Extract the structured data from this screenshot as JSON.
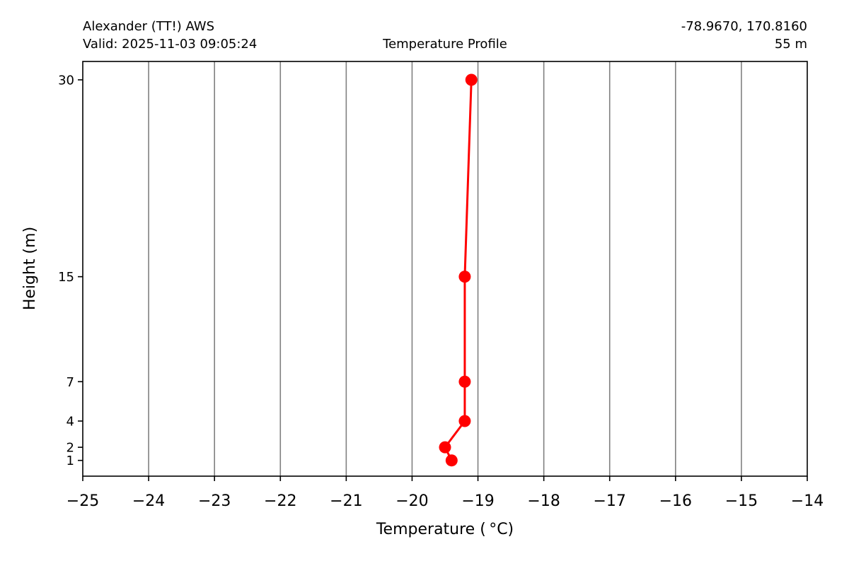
{
  "header": {
    "station": "Alexander (TT!) AWS",
    "valid": "Valid: 2025-11-03 09:05:24",
    "center_title": "Temperature Profile",
    "coords": "-78.9670, 170.8160",
    "elevation": "55 m"
  },
  "chart_data": {
    "type": "line",
    "xlabel": "Temperature ( °C)",
    "ylabel": "Height (m)",
    "xlim": [
      -25,
      -14
    ],
    "ylim": [
      -0.2,
      31.4
    ],
    "x_ticks": [
      -25,
      -24,
      -23,
      -22,
      -21,
      -20,
      -19,
      -18,
      -17,
      -16,
      -15,
      -14
    ],
    "x_tick_labels": [
      "−25",
      "−24",
      "−23",
      "−22",
      "−21",
      "−20",
      "−19",
      "−18",
      "−17",
      "−16",
      "−15",
      "−14"
    ],
    "y_ticks": [
      1,
      2,
      4,
      7,
      15,
      30
    ],
    "y_tick_labels": [
      "1",
      "2",
      "4",
      "7",
      "15",
      "30"
    ],
    "grid": "vertical",
    "series": [
      {
        "color": "#ff0000",
        "points": [
          {
            "x": -19.4,
            "y": 1
          },
          {
            "x": -19.5,
            "y": 2
          },
          {
            "x": -19.2,
            "y": 4
          },
          {
            "x": -19.2,
            "y": 7
          },
          {
            "x": -19.2,
            "y": 15
          },
          {
            "x": -19.1,
            "y": 30
          }
        ]
      }
    ],
    "grid_color": "#808080"
  }
}
